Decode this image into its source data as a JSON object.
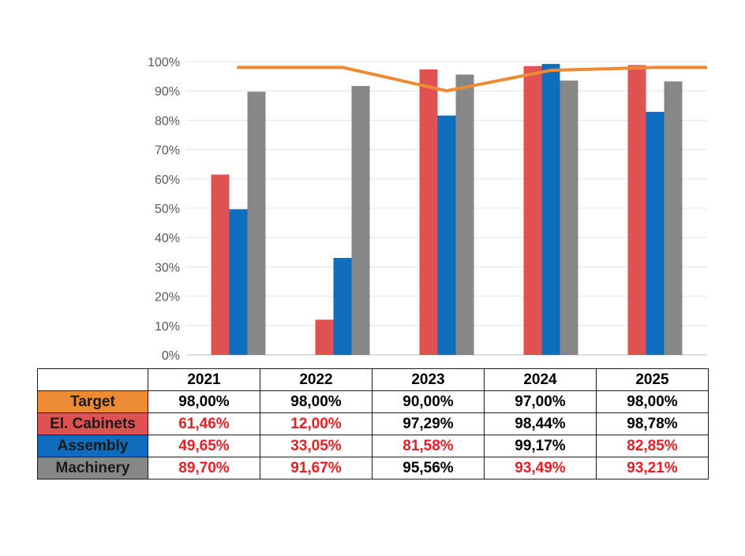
{
  "chart_data": {
    "type": "bar",
    "categories": [
      "2021",
      "2022",
      "2023",
      "2024",
      "2025"
    ],
    "ylim": [
      0,
      100
    ],
    "y_ticks": [
      "0%",
      "10%",
      "20%",
      "30%",
      "40%",
      "50%",
      "60%",
      "70%",
      "80%",
      "90%",
      "100%"
    ],
    "grid": true,
    "series": [
      {
        "name": "Target",
        "type": "line",
        "color": "#ED8B35",
        "values": [
          98.0,
          98.0,
          90.0,
          97.0,
          98.0
        ],
        "labels": [
          "98,00%",
          "98,00%",
          "90,00%",
          "97,00%",
          "98,00%"
        ],
        "label_colors": [
          "#000000",
          "#000000",
          "#000000",
          "#000000",
          "#000000"
        ]
      },
      {
        "name": "El. Cabinets",
        "type": "bar",
        "color": "#E05252",
        "values": [
          61.46,
          12.0,
          97.29,
          98.44,
          98.78
        ],
        "labels": [
          "61,46%",
          "12,00%",
          "97,29%",
          "98,44%",
          "98,78%"
        ],
        "label_colors": [
          "#ED1C24",
          "#ED1C24",
          "#000000",
          "#000000",
          "#000000"
        ]
      },
      {
        "name": "Assembly",
        "type": "bar",
        "color": "#0F6DBE",
        "values": [
          49.65,
          33.05,
          81.58,
          99.17,
          82.85
        ],
        "labels": [
          "49,65%",
          "33,05%",
          "81,58%",
          "99,17%",
          "82,85%"
        ],
        "label_colors": [
          "#ED1C24",
          "#ED1C24",
          "#ED1C24",
          "#000000",
          "#ED1C24"
        ]
      },
      {
        "name": "Machinery",
        "type": "bar",
        "color": "#878787",
        "values": [
          89.7,
          91.67,
          95.56,
          93.49,
          93.21
        ],
        "labels": [
          "89,70%",
          "91,67%",
          "95,56%",
          "93,49%",
          "93,21%"
        ],
        "label_colors": [
          "#ED1C24",
          "#ED1C24",
          "#000000",
          "#ED1C24",
          "#ED1C24"
        ]
      }
    ]
  }
}
